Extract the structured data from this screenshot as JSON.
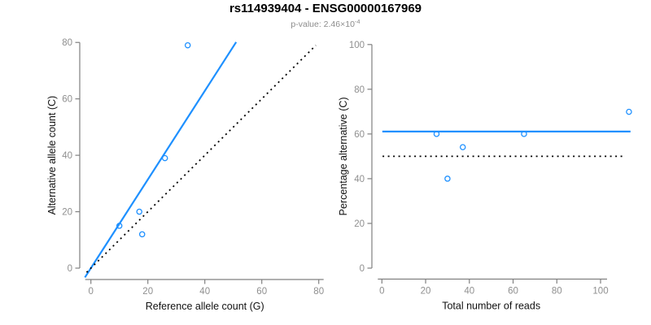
{
  "header": {
    "title": "rs114939404 - ENSG00000167969",
    "pvalue_prefix": "p-value: ",
    "pvalue_base": "2.46×10",
    "pvalue_exponent": "-4"
  },
  "colors": {
    "accent_blue": "#1E90FF",
    "axis_line_gray": "#808080",
    "tick_label_gray": "#8f8f8f",
    "label_black": "#111111",
    "dotted_black": "#000000",
    "background": "#ffffff"
  },
  "chart_data": [
    {
      "id": "allele-counts",
      "type": "scatter",
      "xlabel": "Reference allele count (G)",
      "ylabel": "Alternative allele count (C)",
      "xlim": [
        0,
        80
      ],
      "ylim": [
        0,
        80
      ],
      "xticks": [
        0,
        20,
        40,
        60,
        80
      ],
      "yticks": [
        0,
        20,
        40,
        60,
        80
      ],
      "grid": false,
      "legend": null,
      "points": [
        [
          10,
          15
        ],
        [
          17,
          20
        ],
        [
          18,
          12
        ],
        [
          26,
          39
        ],
        [
          34,
          79
        ]
      ],
      "lines": [
        {
          "name": "fit-line",
          "slope": 1.571,
          "intercept": 0,
          "x_range": [
            -2.1,
            51.0
          ],
          "style": "solid",
          "color": "#1E90FF"
        },
        {
          "name": "identity-line",
          "slope": 1,
          "intercept": 0,
          "x_range": [
            -1.5,
            79
          ],
          "style": "dotted",
          "color": "#000000"
        }
      ]
    },
    {
      "id": "percentage-vs-reads",
      "type": "scatter",
      "xlabel": "Total number of reads",
      "ylabel": "Percentage alternative (C)",
      "xlim": [
        0,
        113
      ],
      "ylim": [
        0,
        100
      ],
      "xticks": [
        0,
        20,
        40,
        60,
        80,
        100
      ],
      "yticks": [
        0,
        20,
        40,
        60,
        80,
        100
      ],
      "grid": false,
      "legend": null,
      "points": [
        [
          25,
          60
        ],
        [
          37,
          54.1
        ],
        [
          30,
          40
        ],
        [
          65,
          60
        ],
        [
          113,
          69.9
        ]
      ],
      "lines": [
        {
          "name": "mean-percentage-line",
          "slope": 0,
          "intercept": 61.1,
          "x_range": [
            0.2,
            113.7
          ],
          "style": "solid",
          "color": "#1E90FF"
        },
        {
          "name": "fifty-percent-line",
          "slope": 0,
          "intercept": 50,
          "x_range": [
            0.3,
            111
          ],
          "style": "dotted",
          "color": "#000000"
        }
      ]
    }
  ]
}
